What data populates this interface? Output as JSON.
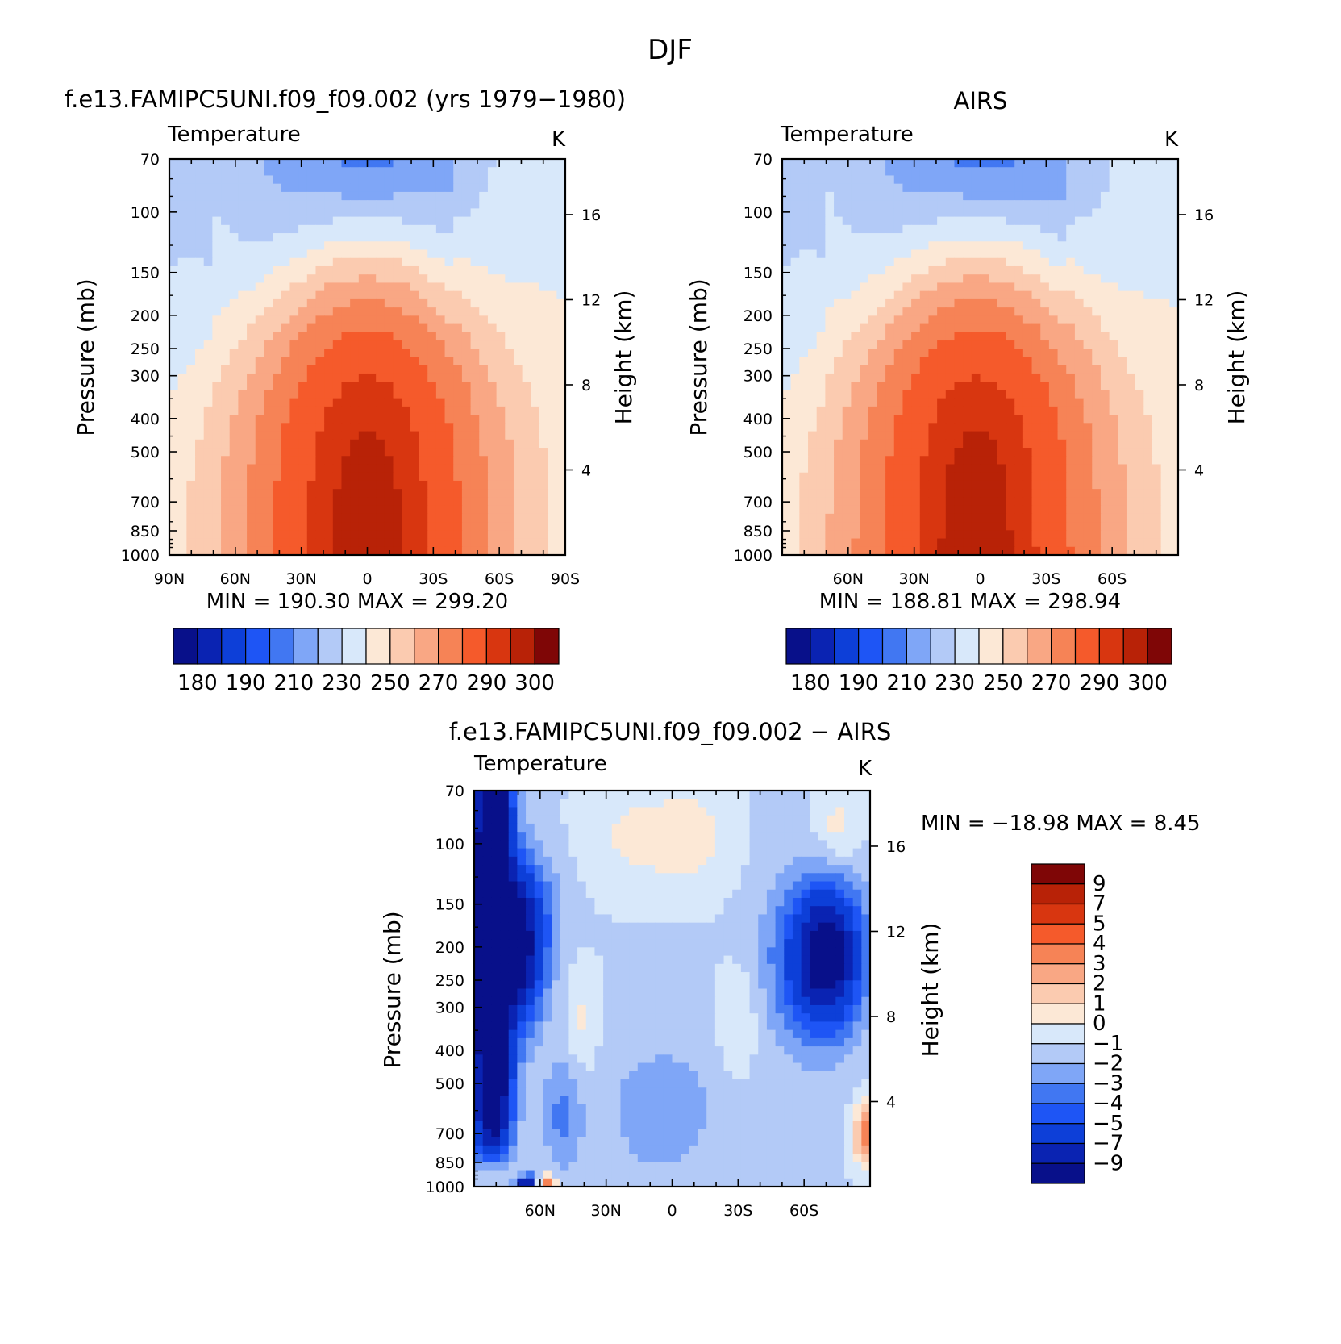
{
  "figure": {
    "title": "DJF"
  },
  "chart_data": [
    {
      "type": "heatmap",
      "panel_title": "f.e13.FAMIPC5UNI.f09_f09.002 (yrs 1979−1980)",
      "left_label": "Temperature",
      "right_label": "K",
      "ylabel": "Pressure (mb)",
      "y2label": "Height (km)",
      "xticks": [
        "90N",
        "60N",
        "30N",
        "0",
        "30S",
        "60S",
        "90S"
      ],
      "yticks": [
        "70",
        "100",
        "150",
        "200",
        "250",
        "300",
        "400",
        "500",
        "700",
        "850",
        "1000"
      ],
      "y2ticks": [
        "16",
        "12",
        "8",
        "4"
      ],
      "stats": "MIN = 190.30   MAX = 299.20",
      "min": 190.3,
      "max": 299.2,
      "ylim": [
        1000,
        70
      ],
      "xlim": [
        "90N",
        "90S"
      ],
      "colorbar": {
        "levels": [
          175,
          180,
          185,
          190,
          200,
          210,
          220,
          230,
          240,
          250,
          260,
          270,
          280,
          290,
          295,
          300,
          305
        ],
        "labels": [
          "180",
          "190",
          "210",
          "230",
          "250",
          "270",
          "290",
          "300"
        ],
        "orientation": "horizontal"
      }
    },
    {
      "type": "heatmap",
      "panel_title": "AIRS",
      "left_label": "Temperature",
      "right_label": "K",
      "ylabel": "Pressure (mb)",
      "y2label": "Height (km)",
      "xticks": [
        "60N",
        "30N",
        "0",
        "30S",
        "60S"
      ],
      "yticks": [
        "70",
        "100",
        "150",
        "200",
        "250",
        "300",
        "400",
        "500",
        "700",
        "850",
        "1000"
      ],
      "y2ticks": [
        "16",
        "12",
        "8",
        "4"
      ],
      "stats": "MIN = 188.81   MAX = 298.94",
      "min": 188.81,
      "max": 298.94,
      "ylim": [
        1000,
        70
      ],
      "colorbar": {
        "levels": [
          175,
          180,
          185,
          190,
          200,
          210,
          220,
          230,
          240,
          250,
          260,
          270,
          280,
          290,
          295,
          300,
          305
        ],
        "labels": [
          "180",
          "190",
          "210",
          "230",
          "250",
          "270",
          "290",
          "300"
        ],
        "orientation": "horizontal"
      }
    },
    {
      "type": "heatmap",
      "panel_title": "f.e13.FAMIPC5UNI.f09_f09.002 − AIRS",
      "left_label": "Temperature",
      "right_label": "K",
      "ylabel": "Pressure (mb)",
      "y2label": "Height (km)",
      "xticks": [
        "60N",
        "30N",
        "0",
        "30S",
        "60S"
      ],
      "yticks": [
        "70",
        "100",
        "150",
        "200",
        "250",
        "300",
        "400",
        "500",
        "700",
        "850",
        "1000"
      ],
      "y2ticks": [
        "16",
        "12",
        "8",
        "4"
      ],
      "stats": "MIN = −18.98   MAX =    8.45",
      "min": -18.98,
      "max": 8.45,
      "ylim": [
        1000,
        70
      ],
      "colorbar": {
        "levels": [
          -11,
          -9,
          -7,
          -5,
          -4,
          -3,
          -2,
          -1,
          0,
          1,
          2,
          3,
          4,
          5,
          7,
          9,
          11
        ],
        "labels": [
          "9",
          "7",
          "5",
          "4",
          "3",
          "2",
          "1",
          "0",
          "−1",
          "−2",
          "−3",
          "−4",
          "−5",
          "−7",
          "−9"
        ],
        "orientation": "vertical"
      }
    }
  ],
  "palette": {
    "colors": [
      "#08108a",
      "#0a23b2",
      "#0d3fd8",
      "#1e55f5",
      "#4177f2",
      "#7fa6f7",
      "#b3caf7",
      "#d8e8fa",
      "#fce8d6",
      "#fbcbb0",
      "#f9a784",
      "#f68356",
      "#f55a2b",
      "#d83610",
      "#b82207",
      "#7f0606"
    ]
  }
}
